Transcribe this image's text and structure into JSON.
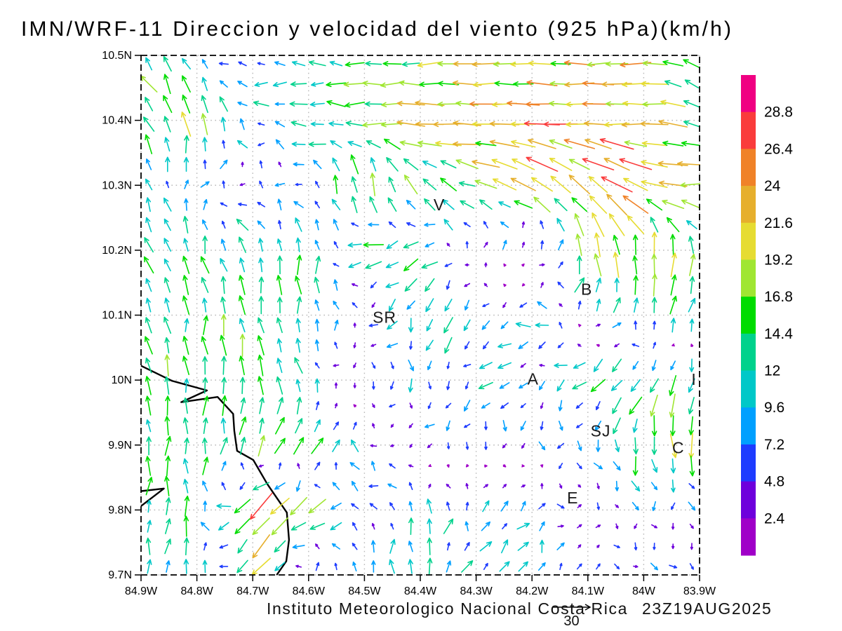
{
  "title": "IMN/WRF-11 Direccion y velocidad del viento (925 hPa)(km/h)",
  "footer": {
    "credit": "Instituto Meteorologico Nacional Costa Rica",
    "timestamp": "23Z19AUG2025"
  },
  "chart_data": {
    "type": "vector_field",
    "title": "IMN/WRF-11 Direccion y velocidad del viento (925 hPa)(km/h)",
    "units": "km/h",
    "pressure_level": "925 hPa",
    "grid_on": true,
    "legend_position": "right-colorbar",
    "x_axis": {
      "range": [
        -84.9,
        -83.9
      ],
      "tick_values": [
        -84.9,
        -84.8,
        -84.7,
        -84.6,
        -84.5,
        -84.4,
        -84.3,
        -84.2,
        -84.1,
        -84.0,
        -83.9
      ],
      "tick_labels": [
        "84.9W",
        "84.8W",
        "84.7W",
        "84.6W",
        "84.5W",
        "84.4W",
        "84.3W",
        "84.2W",
        "84.1W",
        "84W",
        "83.9W"
      ]
    },
    "y_axis": {
      "range": [
        9.7,
        10.5
      ],
      "tick_values": [
        9.7,
        9.8,
        9.9,
        10.0,
        10.1,
        10.2,
        10.3,
        10.4,
        10.5
      ],
      "tick_labels": [
        "9.7N",
        "9.8N",
        "9.9N",
        "10N",
        "10.1N",
        "10.2N",
        "10.3N",
        "10.4N",
        "10.5N"
      ]
    },
    "colorbar": {
      "levels": [
        2.4,
        4.8,
        7.2,
        9.6,
        12,
        14.4,
        16.8,
        19.2,
        21.6,
        24,
        26.4,
        28.8
      ],
      "labels": [
        "2.4",
        "4.8",
        "7.2",
        "9.6",
        "12",
        "14.4",
        "16.8",
        "19.2",
        "21.6",
        "24",
        "26.4",
        "28.8"
      ],
      "colors": [
        "#a000c8",
        "#6e00dc",
        "#1e3cff",
        "#00a0ff",
        "#00c8c8",
        "#00d28c",
        "#00dc00",
        "#a0e632",
        "#e6dc32",
        "#e6af2d",
        "#f08228",
        "#fa3c3c",
        "#f00082"
      ]
    },
    "reference_vector": {
      "speed_kmh": 30,
      "label": "30"
    },
    "city_markers": [
      {
        "label": "V",
        "lon": -84.366,
        "lat": 10.27
      },
      {
        "label": "SR",
        "lon": -84.464,
        "lat": 10.097
      },
      {
        "label": "B",
        "lon": -84.102,
        "lat": 10.14
      },
      {
        "label": "A",
        "lon": -84.198,
        "lat": 10.002
      },
      {
        "label": "I",
        "lon": -83.91,
        "lat": 10.001
      },
      {
        "label": "SJ",
        "lon": -84.077,
        "lat": 9.922
      },
      {
        "label": "C",
        "lon": -83.938,
        "lat": 9.896
      },
      {
        "label": "E",
        "lon": -84.127,
        "lat": 9.819
      }
    ],
    "coastline": [
      [
        [
          -84.9,
          10.022
        ],
        [
          -84.845,
          9.999
        ],
        [
          -84.782,
          9.984
        ],
        [
          -84.828,
          9.966
        ],
        [
          -84.763,
          9.974
        ],
        [
          -84.735,
          9.948
        ],
        [
          -84.733,
          9.922
        ],
        [
          -84.728,
          9.891
        ],
        [
          -84.699,
          9.877
        ],
        [
          -84.674,
          9.84
        ],
        [
          -84.639,
          9.796
        ],
        [
          -84.635,
          9.754
        ],
        [
          -84.64,
          9.721
        ],
        [
          -84.657,
          9.7
        ]
      ],
      [
        [
          -84.9,
          9.829
        ],
        [
          -84.859,
          9.833
        ],
        [
          -84.9,
          9.806
        ]
      ]
    ],
    "wind_grid": {
      "dir_convention": "degrees CCW from east, direction wind blows toward",
      "speed_units": "km/h",
      "lons": [
        -84.9,
        -84.8,
        -84.7,
        -84.6,
        -84.5,
        -84.4,
        -84.3,
        -84.2,
        -84.1,
        -84.0,
        -83.9
      ],
      "lats": [
        10.5,
        10.4,
        10.3,
        10.2,
        10.1,
        10.0,
        9.9,
        9.8,
        9.7
      ],
      "dir_speed": [
        [
          [
            135,
            15
          ],
          [
            95,
            6
          ],
          [
            165,
            9
          ],
          [
            175,
            11
          ],
          [
            180,
            14
          ],
          [
            180,
            17
          ],
          [
            180,
            20
          ],
          [
            180,
            17
          ],
          [
            180,
            20
          ],
          [
            185,
            20
          ],
          [
            145,
            12
          ]
        ],
        [
          [
            130,
            16
          ],
          [
            100,
            19
          ],
          [
            150,
            8
          ],
          [
            175,
            10
          ],
          [
            180,
            15
          ],
          [
            180,
            20
          ],
          [
            180,
            21
          ],
          [
            175,
            22
          ],
          [
            180,
            24
          ],
          [
            180,
            21
          ],
          [
            160,
            16
          ]
        ],
        [
          [
            100,
            10
          ],
          [
            60,
            7
          ],
          [
            150,
            4
          ],
          [
            135,
            7
          ],
          [
            95,
            19
          ],
          [
            120,
            14
          ],
          [
            165,
            15
          ],
          [
            150,
            22
          ],
          [
            140,
            24
          ],
          [
            160,
            23
          ],
          [
            185,
            22
          ]
        ],
        [
          [
            135,
            15
          ],
          [
            100,
            12
          ],
          [
            115,
            13
          ],
          [
            95,
            12
          ],
          [
            200,
            15
          ],
          [
            215,
            12
          ],
          [
            70,
            9
          ],
          [
            0,
            6
          ],
          [
            100,
            19
          ],
          [
            95,
            18
          ],
          [
            75,
            14
          ]
        ],
        [
          [
            115,
            14
          ],
          [
            95,
            13
          ],
          [
            95,
            14
          ],
          [
            95,
            13
          ],
          [
            200,
            4
          ],
          [
            245,
            12
          ],
          [
            235,
            12
          ],
          [
            165,
            10
          ],
          [
            40,
            6
          ],
          [
            80,
            14
          ],
          [
            70,
            15
          ]
        ],
        [
          [
            100,
            13
          ],
          [
            90,
            14
          ],
          [
            95,
            15
          ],
          [
            120,
            10
          ],
          [
            250,
            7
          ],
          [
            290,
            8
          ],
          [
            210,
            9
          ],
          [
            230,
            6
          ],
          [
            210,
            12
          ],
          [
            225,
            16
          ],
          [
            260,
            14
          ]
        ],
        [
          [
            95,
            12
          ],
          [
            85,
            13
          ],
          [
            70,
            15
          ],
          [
            50,
            17
          ],
          [
            120,
            8
          ],
          [
            230,
            6
          ],
          [
            270,
            7
          ],
          [
            250,
            5
          ],
          [
            265,
            7
          ],
          [
            280,
            16
          ],
          [
            275,
            18
          ]
        ],
        [
          [
            80,
            12
          ],
          [
            95,
            14
          ],
          [
            230,
            27
          ],
          [
            215,
            18
          ],
          [
            160,
            8
          ],
          [
            90,
            10
          ],
          [
            80,
            9
          ],
          [
            45,
            8
          ],
          [
            330,
            4
          ],
          [
            280,
            6
          ],
          [
            320,
            5
          ]
        ],
        [
          [
            85,
            10
          ],
          [
            80,
            11
          ],
          [
            235,
            18
          ],
          [
            75,
            10
          ],
          [
            85,
            11
          ],
          [
            95,
            12
          ],
          [
            70,
            9
          ],
          [
            45,
            7
          ],
          [
            20,
            5
          ],
          [
            310,
            6
          ],
          [
            300,
            4
          ]
        ]
      ]
    }
  }
}
